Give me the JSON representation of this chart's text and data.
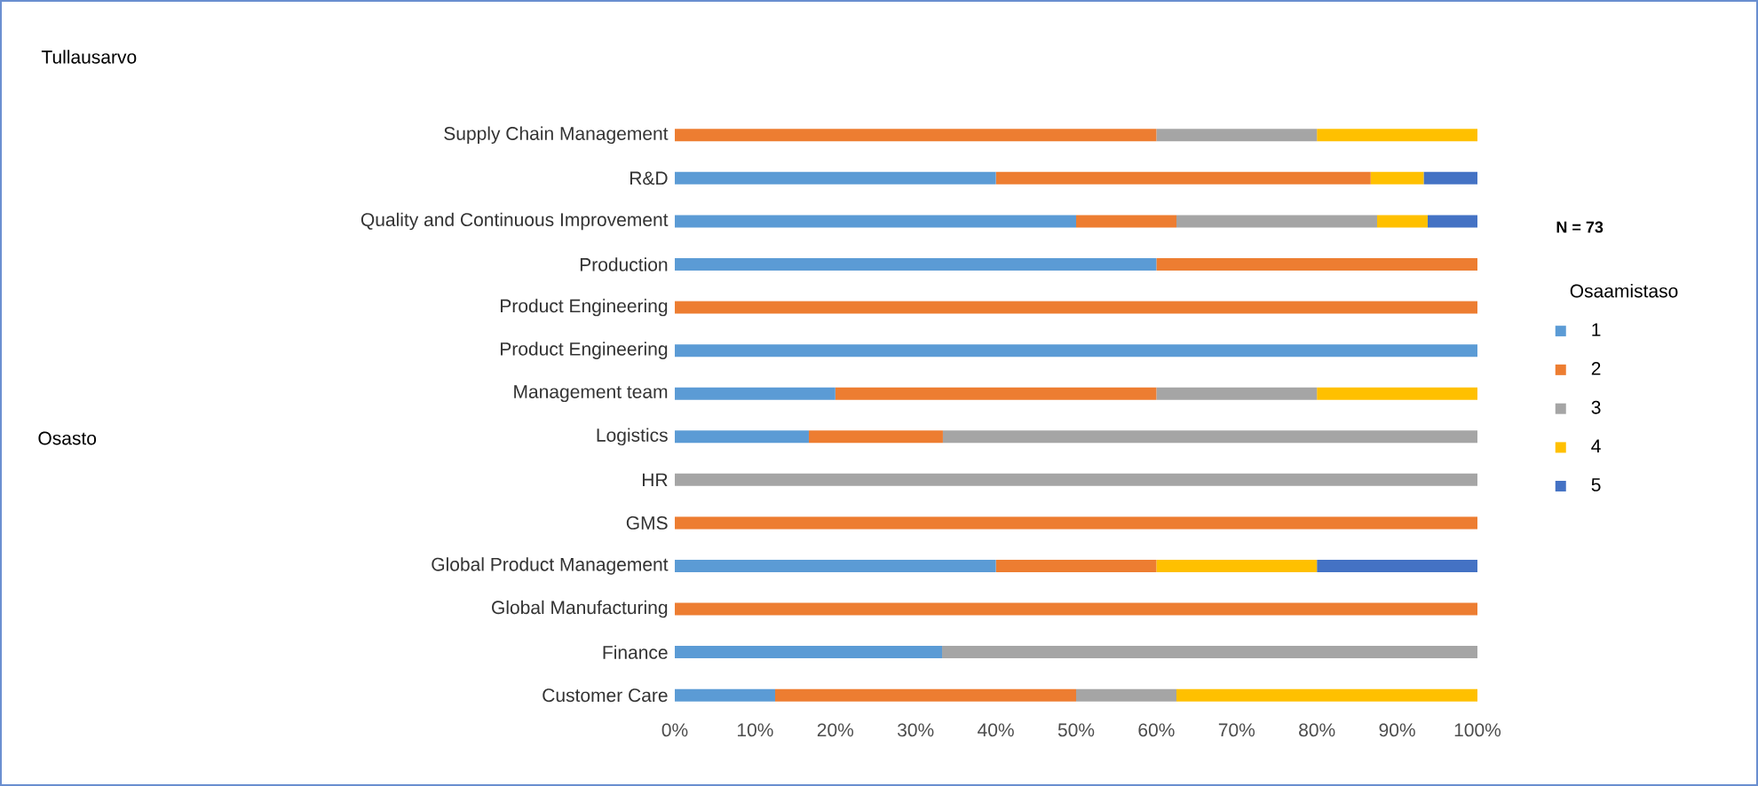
{
  "chart_data": {
    "type": "bar",
    "orientation": "horizontal",
    "stacked": true,
    "title": "Tullausarvo",
    "legend_title": "Osaamistaso",
    "annotations": [
      "N = 73",
      "Osasto"
    ],
    "categories": [
      "Supply Chain Management",
      "R&D",
      "Quality and Continuous Improvement",
      "Production",
      "Product Engineering",
      "Product Engineering",
      "Management team",
      "Logistics",
      "HR",
      "GMS",
      "Global Product Management",
      "Global Manufacturing",
      "Finance",
      "Customer Care"
    ],
    "series": [
      {
        "name": "1",
        "color": "#5b9bd5",
        "values": [
          0,
          40,
          50,
          60,
          0,
          100,
          20,
          16.7,
          0,
          0,
          40,
          0,
          33.3,
          12.5
        ]
      },
      {
        "name": "2",
        "color": "#ed7d31",
        "values": [
          60,
          46.7,
          12.5,
          40,
          100,
          0,
          40,
          16.7,
          0,
          100,
          20,
          100,
          0,
          37.5
        ]
      },
      {
        "name": "3",
        "color": "#a5a5a5",
        "values": [
          20,
          0,
          25,
          0,
          0,
          0,
          20,
          66.6,
          100,
          0,
          0,
          0,
          66.7,
          12.5
        ]
      },
      {
        "name": "4",
        "color": "#ffc000",
        "values": [
          20,
          6.6,
          6.3,
          0,
          0,
          0,
          20,
          0,
          0,
          0,
          20,
          0,
          0,
          37.5
        ]
      },
      {
        "name": "5",
        "color": "#4472c4",
        "values": [
          0,
          6.7,
          6.2,
          0,
          0,
          0,
          0,
          0,
          0,
          0,
          20,
          0,
          0,
          0
        ]
      }
    ],
    "xlim": [
      0,
      100
    ],
    "xticks": [
      {
        "value": 0,
        "label": "0%"
      },
      {
        "value": 10,
        "label": "10%"
      },
      {
        "value": 20,
        "label": "20%"
      },
      {
        "value": 30,
        "label": "30%"
      },
      {
        "value": 40,
        "label": "40%"
      },
      {
        "value": 50,
        "label": "50%"
      },
      {
        "value": 60,
        "label": "60%"
      },
      {
        "value": 70,
        "label": "70%"
      },
      {
        "value": 80,
        "label": "80%"
      },
      {
        "value": 90,
        "label": "90%"
      },
      {
        "value": 100,
        "label": "100%"
      }
    ],
    "legend": "right"
  }
}
